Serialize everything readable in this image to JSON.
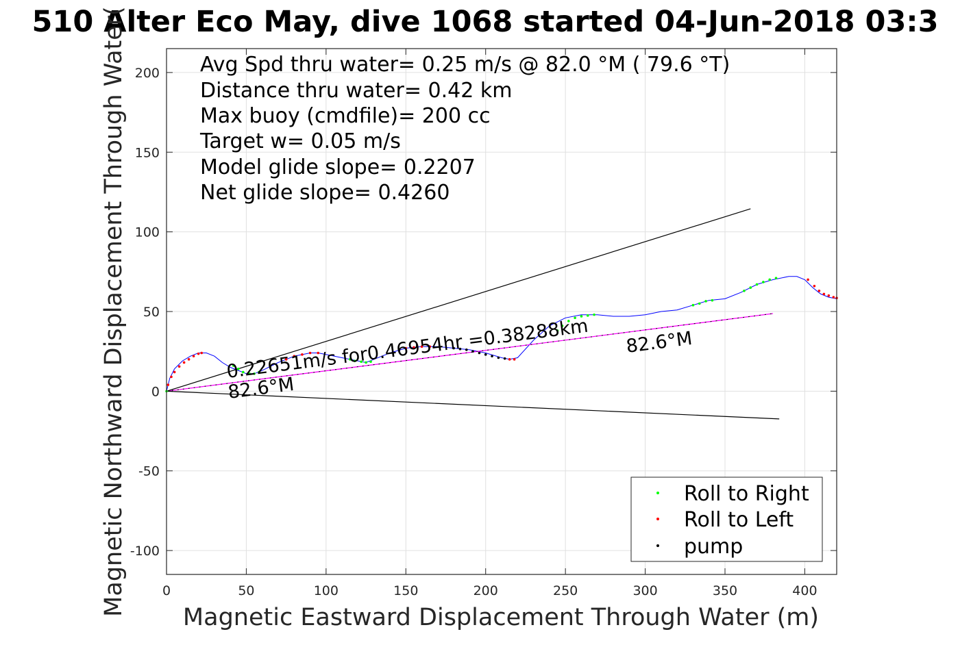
{
  "chart_data": {
    "type": "line",
    "title": "510 Alter Eco May, dive 1068 started 04-Jun-2018 03:3",
    "xlabel": "Magnetic Eastward Displacement Through Water (m)",
    "ylabel": "Magnetic Northward Displacement Through Water(",
    "xlim": [
      0,
      420
    ],
    "ylim": [
      -115,
      215
    ],
    "xticks": [
      0,
      50,
      100,
      150,
      200,
      250,
      300,
      350,
      400
    ],
    "yticks": [
      -100,
      -50,
      0,
      50,
      100,
      150,
      200
    ],
    "xtick_labels": [
      "0",
      "50",
      "100",
      "150",
      "200",
      "250",
      "300",
      "350",
      "400"
    ],
    "ytick_labels": [
      "-100",
      "-50",
      "0",
      "50",
      "100",
      "150",
      "200"
    ],
    "grid": true,
    "legend_position": "bottom-right",
    "stats": [
      "Avg Spd thru water=  0.25 m/s @  82.0 °M ( 79.6 °T)",
      "Distance thru water=  0.42 km",
      "Max buoy (cmdfile)= 200 cc",
      "Target w= 0.05 m/s",
      "Model glide slope= 0.2207",
      "Net glide slope= 0.4260"
    ],
    "annotations": {
      "speed_text": "0.22651m/s for0.46954hr =0.38288km",
      "heading_start": "82.6°M",
      "heading_end": "82.6°M"
    },
    "colors": {
      "track": "#0000ff",
      "roll_right": "#00ff00",
      "roll_left": "#ff0000",
      "pump": "#000000",
      "heading_line": "#ff00ff",
      "envelope": "#000000",
      "grid": "#e0e0e0"
    },
    "series": [
      {
        "kind": "track",
        "x": [
          0,
          2,
          5,
          10,
          15,
          20,
          25,
          30,
          35,
          40,
          45,
          50,
          55,
          60,
          70,
          80,
          90,
          95,
          100,
          110,
          120,
          125,
          130,
          140,
          150,
          160,
          170,
          180,
          190,
          200,
          210,
          215,
          220,
          230,
          240,
          250,
          260,
          270,
          280,
          290,
          300,
          310,
          320,
          330,
          340,
          350,
          360,
          370,
          380,
          390,
          395,
          400,
          405,
          410,
          415,
          420
        ],
        "y": [
          0,
          8,
          14,
          19,
          22,
          24,
          24,
          22,
          18,
          15,
          13,
          11,
          11,
          13,
          18,
          22,
          24,
          24,
          23,
          21,
          19,
          18,
          20,
          24,
          27,
          28,
          28,
          27,
          26,
          24,
          21,
          20,
          21,
          32,
          41,
          46,
          48,
          48,
          47,
          47,
          48,
          50,
          51,
          54,
          57,
          58,
          62,
          67,
          70,
          72,
          72,
          70,
          65,
          61,
          59,
          58
        ]
      },
      {
        "kind": "heading_line",
        "x": [
          0,
          380
        ],
        "y": [
          0,
          48.7
        ]
      },
      {
        "kind": "envelope_upper",
        "x": [
          0,
          366
        ],
        "y": [
          0,
          114.5
        ]
      },
      {
        "kind": "envelope_lower",
        "x": [
          0,
          384
        ],
        "y": [
          0,
          -17.4
        ]
      }
    ],
    "legend": [
      {
        "label": "Roll to Right",
        "marker": "roll_right"
      },
      {
        "label": "Roll to Left",
        "marker": "roll_left"
      },
      {
        "label": "pump",
        "marker": "pump"
      }
    ],
    "markers": {
      "roll_right": {
        "x": [
          0,
          42,
          45,
          48,
          52,
          55,
          58,
          115,
          118,
          122,
          125,
          128,
          245,
          248,
          252,
          256,
          260,
          264,
          268,
          330,
          334,
          338,
          342,
          362,
          366,
          370,
          374,
          378,
          382
        ],
        "y": [
          0,
          16,
          14,
          12,
          11,
          11,
          12,
          20,
          19,
          18.5,
          18,
          18.5,
          38,
          41,
          44,
          46,
          47,
          47.5,
          48,
          54,
          55,
          56.5,
          57,
          63,
          65,
          67,
          68.5,
          70,
          71
        ]
      },
      "roll_left": {
        "x": [
          1,
          3,
          5,
          8,
          11,
          14,
          17,
          20,
          22,
          75,
          80,
          85,
          90,
          95,
          150,
          155,
          160,
          165,
          215,
          218,
          402,
          406,
          409,
          412,
          415,
          418,
          420
        ],
        "y": [
          4,
          9,
          12,
          15.5,
          18,
          20,
          22,
          23.5,
          24,
          20,
          22,
          23,
          24,
          24,
          27,
          27.5,
          28,
          28,
          20,
          20,
          70,
          66,
          63,
          61,
          60,
          59,
          58.5
        ]
      },
      "pump": {
        "x": [
          180,
          184,
          188,
          192,
          196,
          200,
          204,
          208,
          212
        ],
        "y": [
          27,
          26.5,
          26,
          25,
          24,
          23,
          22,
          21,
          20.5
        ]
      }
    }
  }
}
